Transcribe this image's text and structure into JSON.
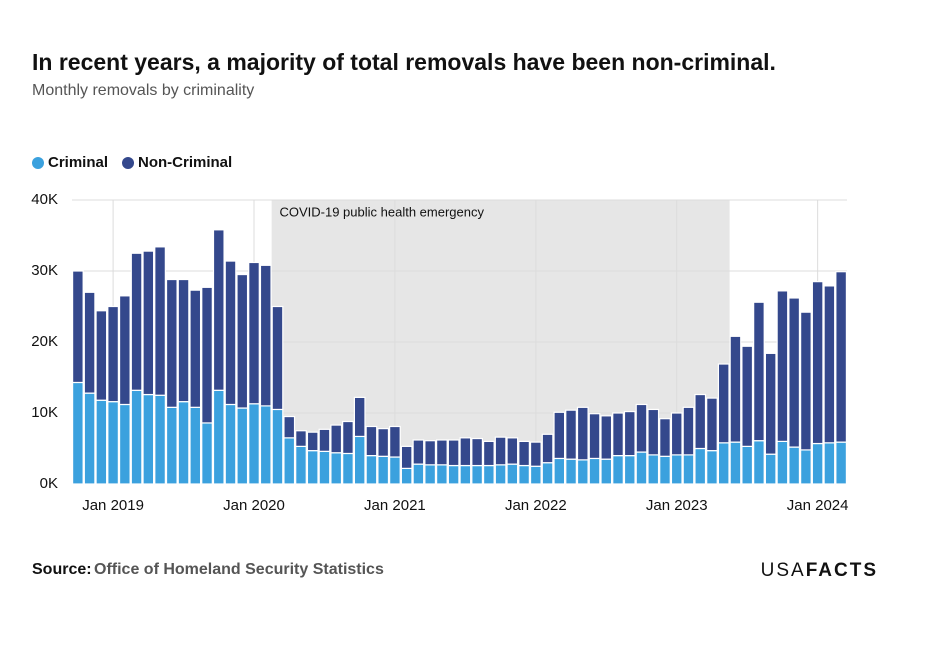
{
  "chart_data": {
    "type": "bar",
    "stacked": true,
    "title": "In recent years, a majority of total removals have been non-criminal.",
    "subtitle": "Monthly removals by criminality",
    "categories": [
      null,
      null,
      null,
      "Jan 2019",
      null,
      null,
      null,
      null,
      null,
      null,
      null,
      null,
      null,
      null,
      null,
      "Jan 2020",
      null,
      null,
      null,
      null,
      null,
      null,
      null,
      null,
      null,
      null,
      null,
      "Jan 2021",
      null,
      null,
      null,
      null,
      null,
      null,
      null,
      null,
      null,
      null,
      null,
      "Jan 2022",
      null,
      null,
      null,
      null,
      null,
      null,
      null,
      null,
      null,
      null,
      null,
      "Jan 2023",
      null,
      null,
      null,
      null,
      null,
      null,
      null,
      null,
      null,
      null,
      null,
      "Jan 2024",
      null,
      null
    ],
    "series": [
      {
        "name": "Criminal",
        "color": "#3ba1de",
        "values": [
          14300,
          12800,
          11800,
          11600,
          11200,
          13200,
          12600,
          12500,
          10800,
          11600,
          10800,
          8600,
          13200,
          11200,
          10700,
          11300,
          11000,
          10500,
          6500,
          5300,
          4700,
          4600,
          4400,
          4300,
          6700,
          4000,
          3900,
          3800,
          2200,
          2800,
          2700,
          2700,
          2600,
          2600,
          2600,
          2600,
          2700,
          2800,
          2600,
          2500,
          3000,
          3600,
          3500,
          3400,
          3600,
          3500,
          4000,
          4000,
          4500,
          4100,
          3900,
          4100,
          4100,
          5000,
          4700,
          5800,
          5900,
          5300,
          6100,
          4200,
          6000,
          5200,
          4800,
          5700,
          5800,
          5900
        ]
      },
      {
        "name": "Non-Criminal",
        "color": "#34488c",
        "values": [
          15700,
          14200,
          12600,
          13400,
          15300,
          19300,
          20200,
          20900,
          18000,
          17200,
          16500,
          19100,
          22600,
          20200,
          18800,
          19900,
          19800,
          14500,
          3000,
          2200,
          2600,
          3100,
          3900,
          4500,
          5500,
          4100,
          3900,
          4300,
          3100,
          3400,
          3400,
          3500,
          3600,
          3900,
          3800,
          3400,
          3900,
          3700,
          3400,
          3400,
          4000,
          6500,
          6900,
          7400,
          6300,
          6100,
          6000,
          6200,
          6700,
          6400,
          5300,
          5900,
          6700,
          7600,
          7400,
          11100,
          14900,
          14100,
          19500,
          14200,
          21200,
          21000,
          19400,
          22800,
          22100,
          24000
        ]
      }
    ],
    "ylim": [
      0,
      40000
    ],
    "yticks": [
      {
        "value": 0,
        "label": "0K"
      },
      {
        "value": 10000,
        "label": "10K"
      },
      {
        "value": 20000,
        "label": "20K"
      },
      {
        "value": 30000,
        "label": "30K"
      },
      {
        "value": 40000,
        "label": "40K"
      }
    ],
    "grid": true,
    "legend": "top-left",
    "annotation": {
      "text": "COVID-19 public health emergency",
      "start": 17,
      "end": 55,
      "color": "#e6e6e6"
    },
    "source_label": "Source:",
    "source": "Office of Homeland Security Statistics",
    "logo": {
      "light": "USA",
      "bold": "FACTS"
    }
  }
}
